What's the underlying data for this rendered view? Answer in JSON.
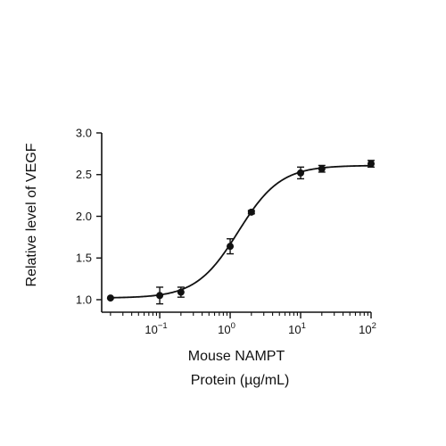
{
  "chart_data": {
    "type": "scatter",
    "title": "",
    "xlabel": [
      "Mouse NAMPT",
      "Protein (µg/mL)"
    ],
    "ylabel": "Relative level of VEGF",
    "xscale": "log",
    "xlim": [
      0.015,
      100
    ],
    "ylim": [
      0.85,
      3.0
    ],
    "grid": false,
    "legend": "none",
    "y_ticks": [
      {
        "value": 1.0,
        "label": "1.0"
      },
      {
        "value": 1.5,
        "label": "1.5"
      },
      {
        "value": 2.0,
        "label": "2.0"
      },
      {
        "value": 2.5,
        "label": "2.5"
      },
      {
        "value": 3.0,
        "label": "3.0"
      }
    ],
    "x_ticks": [
      {
        "value": 0.1,
        "base": "10",
        "exp": "−1"
      },
      {
        "value": 1,
        "base": "10",
        "exp": "0"
      },
      {
        "value": 10,
        "base": "10",
        "exp": "1"
      },
      {
        "value": 100,
        "base": "10",
        "exp": "2"
      }
    ],
    "series": [
      {
        "x": [
          0.02,
          0.1,
          0.2,
          1.0,
          2.0,
          10,
          20,
          100
        ],
        "y": [
          1.02,
          1.05,
          1.09,
          1.64,
          2.05,
          2.52,
          2.57,
          2.63
        ],
        "error": [
          0.0,
          0.1,
          0.06,
          0.09,
          0.02,
          0.07,
          0.04,
          0.04
        ]
      }
    ],
    "fit": {
      "model": "four-parameter logistic",
      "bottom": 1.02,
      "top": 2.61,
      "ec50": 1.3,
      "hill": 1.45
    },
    "colors": {
      "marker": "#111111",
      "line": "#111111",
      "axis": "#111111"
    }
  }
}
